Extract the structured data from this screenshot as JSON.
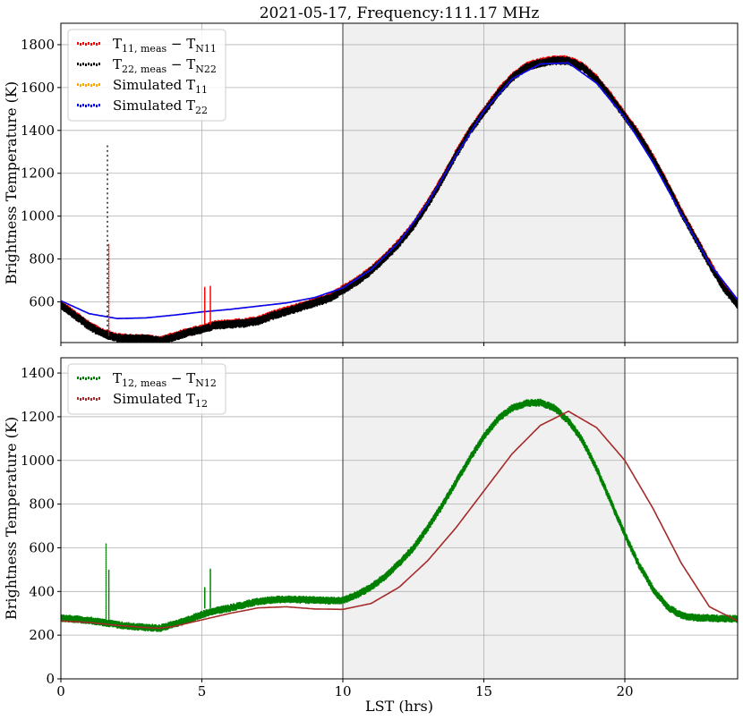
{
  "title": "2021-05-17, Frequency:111.17 MHz",
  "xlabel": "LST (hrs)",
  "chart_data": [
    {
      "type": "scatter",
      "ylabel": "Brightness Temperature (K)",
      "xlim": [
        0,
        24
      ],
      "ylim": [
        410,
        1900
      ],
      "xticks": [
        0,
        5,
        10,
        15,
        20
      ],
      "yticks": [
        600,
        800,
        1000,
        1200,
        1400,
        1600,
        1800
      ],
      "shaded_region": [
        10,
        20
      ],
      "grid": true,
      "legend_position": "upper-left",
      "series": [
        {
          "name": "T_{11,meas} − T_{N11}",
          "legend_main": "T",
          "legend_sub": "11, meas",
          "legend_tail": " − T",
          "legend_sub2": "N11",
          "color": "#ff0000",
          "style": "markers",
          "x": [
            0,
            0.5,
            1,
            1.5,
            2,
            2.5,
            3,
            3.5,
            4,
            4.5,
            5,
            5.5,
            6,
            6.5,
            7,
            7.5,
            8,
            8.5,
            9,
            9.5,
            10,
            10.5,
            11,
            11.5,
            12,
            12.5,
            13,
            13.5,
            14,
            14.5,
            15,
            15.5,
            16,
            16.5,
            17,
            17.5,
            18,
            18.5,
            19,
            19.5,
            20,
            20.5,
            21,
            21.5,
            22,
            22.5,
            23,
            23.5,
            24
          ],
          "y": [
            590,
            540,
            490,
            455,
            435,
            430,
            430,
            420,
            440,
            460,
            475,
            495,
            500,
            505,
            515,
            540,
            560,
            580,
            600,
            620,
            660,
            700,
            750,
            810,
            880,
            960,
            1060,
            1170,
            1290,
            1400,
            1490,
            1580,
            1650,
            1700,
            1720,
            1730,
            1730,
            1700,
            1640,
            1560,
            1470,
            1380,
            1270,
            1150,
            1020,
            900,
            780,
            670,
            590
          ]
        },
        {
          "name": "T_{22,meas} − T_{N22}",
          "legend_main": "T",
          "legend_sub": "22, meas",
          "legend_tail": " − T",
          "legend_sub2": "N22",
          "color": "#000000",
          "style": "markers",
          "x": [
            0,
            0.5,
            1,
            1.5,
            2,
            2.5,
            3,
            3.5,
            4,
            4.5,
            5,
            5.5,
            6,
            6.5,
            7,
            7.5,
            8,
            8.5,
            9,
            9.5,
            10,
            10.5,
            11,
            11.5,
            12,
            12.5,
            13,
            13.5,
            14,
            14.5,
            15,
            15.5,
            16,
            16.5,
            17,
            17.5,
            18,
            18.5,
            19,
            19.5,
            20,
            20.5,
            21,
            21.5,
            22,
            22.5,
            23,
            23.5,
            24
          ],
          "y": [
            585,
            535,
            485,
            450,
            432,
            428,
            428,
            418,
            436,
            456,
            472,
            490,
            495,
            500,
            510,
            535,
            555,
            575,
            595,
            615,
            655,
            695,
            745,
            805,
            875,
            955,
            1055,
            1165,
            1285,
            1395,
            1485,
            1575,
            1645,
            1695,
            1715,
            1725,
            1725,
            1695,
            1635,
            1555,
            1465,
            1375,
            1265,
            1145,
            1015,
            895,
            775,
            665,
            585
          ]
        },
        {
          "name": "Simulated T_{11}",
          "legend_main": "Simulated T",
          "legend_sub": "11",
          "color": "#ffa500",
          "style": "line",
          "x": [
            0,
            1,
            2,
            3,
            4,
            5,
            6,
            7,
            8,
            9,
            10,
            11,
            12,
            13,
            14,
            15,
            16,
            17,
            18,
            19,
            20,
            21,
            22,
            23,
            24
          ],
          "y": [
            605,
            545,
            522,
            525,
            538,
            553,
            565,
            580,
            595,
            620,
            665,
            750,
            880,
            1060,
            1280,
            1490,
            1640,
            1710,
            1715,
            1620,
            1460,
            1250,
            1010,
            780,
            610
          ]
        },
        {
          "name": "Simulated T_{22}",
          "legend_main": "Simulated T",
          "legend_sub": "22",
          "color": "#0000ff",
          "style": "line",
          "x": [
            0,
            1,
            2,
            3,
            4,
            5,
            6,
            7,
            8,
            9,
            10,
            11,
            12,
            13,
            14,
            15,
            16,
            17,
            18,
            19,
            20,
            21,
            22,
            23,
            24
          ],
          "y": [
            605,
            545,
            522,
            525,
            538,
            553,
            565,
            580,
            595,
            620,
            665,
            750,
            880,
            1060,
            1280,
            1490,
            1640,
            1710,
            1715,
            1620,
            1460,
            1250,
            1010,
            780,
            610
          ]
        }
      ],
      "spikes": [
        {
          "x": 1.65,
          "y": [
            450,
            1330
          ],
          "color": "#000000"
        },
        {
          "x": 1.7,
          "y": [
            450,
            870
          ],
          "color": "#ff0000"
        },
        {
          "x": 5.1,
          "y": [
            500,
            670
          ],
          "color": "#ff0000"
        },
        {
          "x": 5.3,
          "y": [
            500,
            675
          ],
          "color": "#ff0000"
        }
      ]
    },
    {
      "type": "scatter",
      "ylabel": "Brightness Temperature (K)",
      "xlim": [
        0,
        24
      ],
      "ylim": [
        0,
        1470
      ],
      "xticks": [
        0,
        5,
        10,
        15,
        20
      ],
      "xticklabels": [
        "0",
        "5",
        "10",
        "15",
        "20"
      ],
      "yticks": [
        0,
        200,
        400,
        600,
        800,
        1000,
        1200,
        1400
      ],
      "shaded_region": [
        10,
        20
      ],
      "grid": true,
      "legend_position": "upper-left",
      "series": [
        {
          "name": "T_{12,meas} − T_{N12}",
          "legend_main": "T",
          "legend_sub": "12, meas",
          "legend_tail": " − T",
          "legend_sub2": "N12",
          "color": "#008000",
          "style": "markers",
          "x": [
            0,
            0.5,
            1,
            1.5,
            2,
            2.5,
            3,
            3.5,
            4,
            4.5,
            5,
            5.5,
            6,
            6.5,
            7,
            7.5,
            8,
            8.5,
            9,
            9.5,
            10,
            10.5,
            11,
            11.5,
            12,
            12.5,
            13,
            13.5,
            14,
            14.5,
            15,
            15.5,
            16,
            16.5,
            17,
            17.5,
            18,
            18.5,
            19,
            19.5,
            20,
            20.5,
            21,
            21.5,
            22,
            22.5,
            23,
            23.5,
            24
          ],
          "y": [
            278,
            274,
            268,
            258,
            248,
            240,
            236,
            232,
            250,
            270,
            295,
            312,
            325,
            340,
            355,
            362,
            365,
            362,
            360,
            358,
            360,
            385,
            420,
            470,
            530,
            600,
            690,
            790,
            900,
            1010,
            1110,
            1190,
            1240,
            1262,
            1265,
            1240,
            1180,
            1090,
            960,
            810,
            660,
            520,
            410,
            330,
            290,
            280,
            278,
            276,
            275
          ]
        },
        {
          "name": "Simulated T_{12}",
          "legend_main": "Simulated T",
          "legend_sub": "12",
          "color": "#a52a2a",
          "style": "line",
          "x": [
            0,
            1,
            2,
            3,
            3.5,
            4,
            5,
            6,
            7,
            8,
            9,
            10,
            11,
            12,
            13,
            14,
            15,
            16,
            17,
            18,
            19,
            20,
            21,
            22,
            23,
            24
          ],
          "y": [
            265,
            258,
            245,
            235,
            232,
            240,
            270,
            300,
            325,
            330,
            320,
            318,
            345,
            420,
            540,
            690,
            860,
            1030,
            1160,
            1225,
            1150,
            1000,
            780,
            530,
            330,
            265
          ]
        }
      ],
      "spikes": [
        {
          "x": 1.6,
          "y": [
            265,
            620
          ],
          "color": "#008000"
        },
        {
          "x": 1.7,
          "y": [
            265,
            500
          ],
          "color": "#008000"
        },
        {
          "x": 5.1,
          "y": [
            330,
            420
          ],
          "color": "#008000"
        },
        {
          "x": 5.3,
          "y": [
            330,
            505
          ],
          "color": "#008000"
        }
      ]
    }
  ]
}
